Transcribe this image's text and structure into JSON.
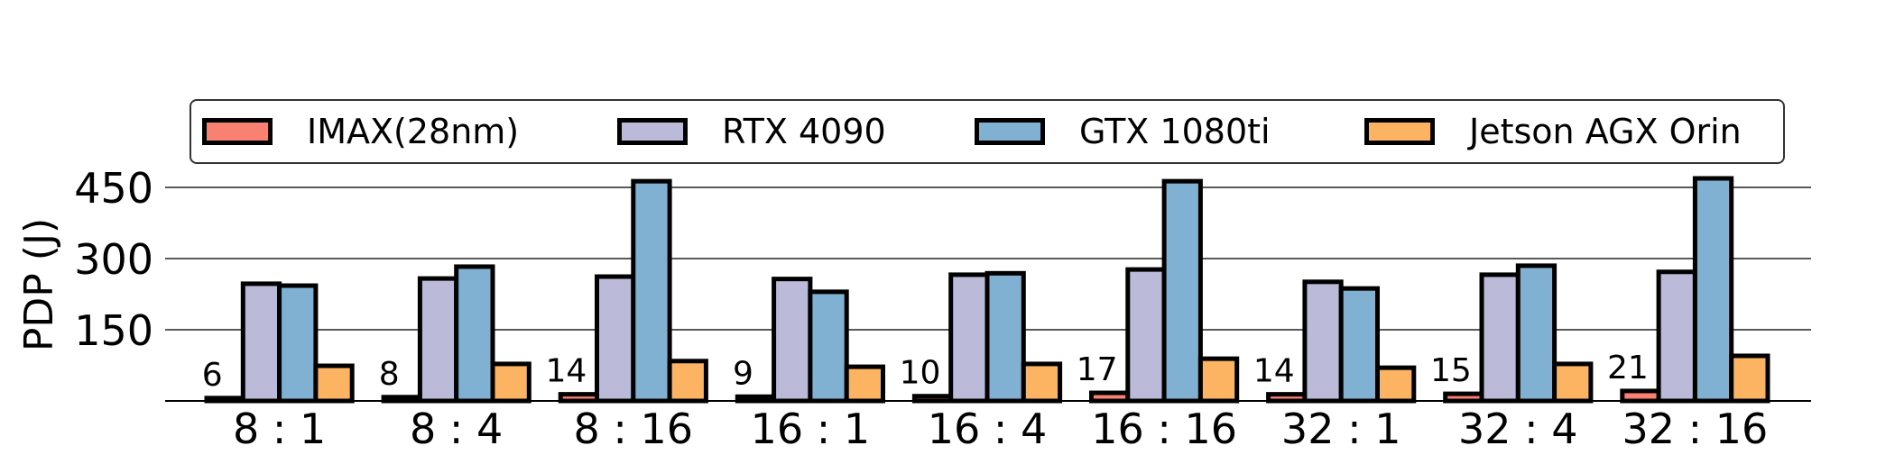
{
  "chart_data": {
    "type": "bar",
    "title": "",
    "xlabel": "",
    "ylabel": "PDP (J)",
    "ylim": [
      0,
      470
    ],
    "yticks": [
      150,
      300,
      450
    ],
    "grid": "horizontal",
    "legend_position": "top",
    "categories": [
      "8 : 1",
      "8 : 4",
      "8 : 16",
      "16 : 1",
      "16 : 4",
      "16 : 16",
      "32 : 1",
      "32 : 4",
      "32 : 16"
    ],
    "series": [
      {
        "name": "IMAX(28nm)",
        "color": "#fa8072",
        "values": [
          6,
          8,
          14,
          9,
          10,
          17,
          14,
          15,
          21
        ]
      },
      {
        "name": "RTX 4090",
        "color": "#bcbad9",
        "values": [
          247,
          258,
          262,
          257,
          266,
          277,
          251,
          266,
          272
        ]
      },
      {
        "name": "GTX 1080ti",
        "color": "#80b1d3",
        "values": [
          243,
          283,
          463,
          230,
          269,
          463,
          237,
          285,
          469
        ]
      },
      {
        "name": "Jetson AGX Orin",
        "color": "#fdb462",
        "values": [
          74,
          78,
          84,
          72,
          78,
          89,
          70,
          78,
          95
        ]
      }
    ],
    "annotations": [
      "6",
      "8",
      "14",
      "9",
      "10",
      "17",
      "14",
      "15",
      "21"
    ]
  },
  "legend": {
    "items": [
      {
        "label": "IMAX(28nm)",
        "color": "#fa8072"
      },
      {
        "label": "RTX 4090",
        "color": "#bcbad9"
      },
      {
        "label": "GTX 1080ti",
        "color": "#80b1d3"
      },
      {
        "label": "Jetson AGX Orin",
        "color": "#fdb462"
      }
    ]
  }
}
